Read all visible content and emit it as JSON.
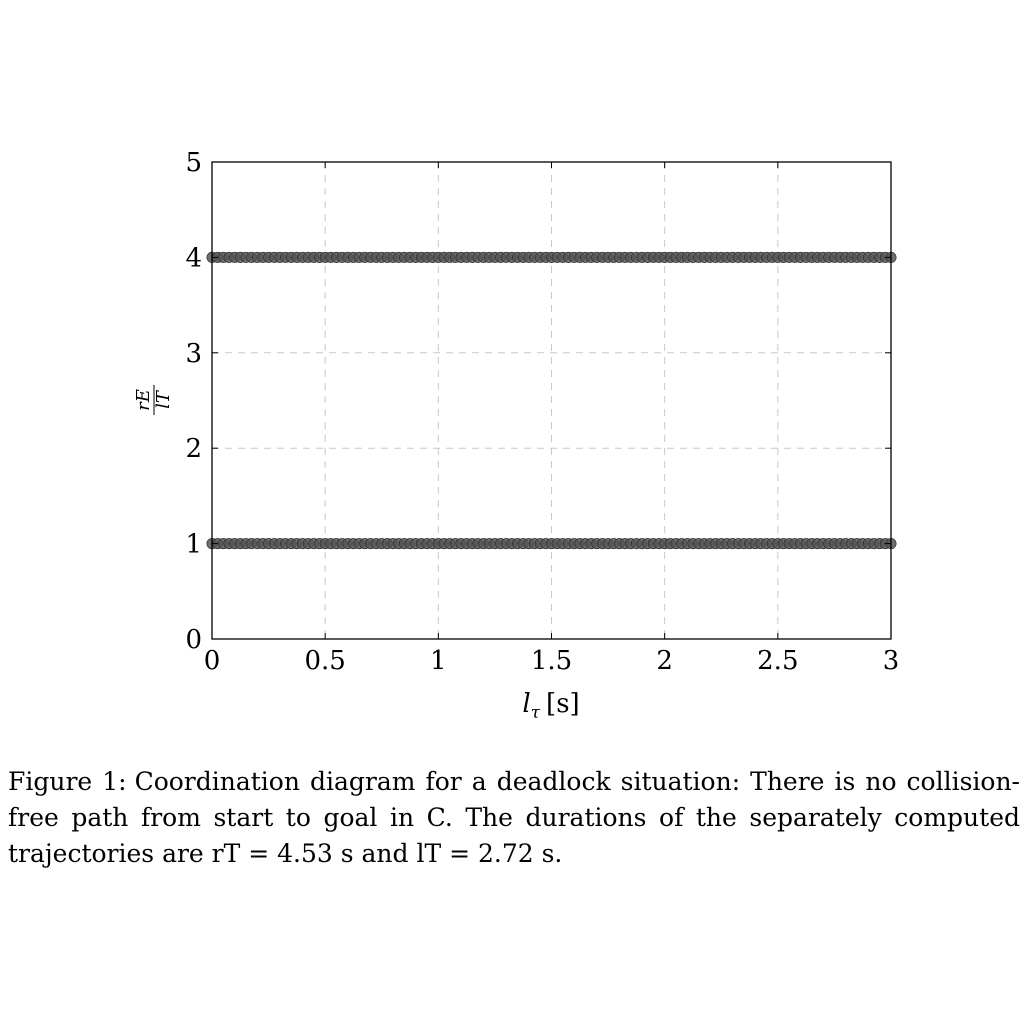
{
  "chart_data": {
    "type": "scatter",
    "xlabel": "lτ [s]",
    "ylabel": "rE/lT",
    "xlim": [
      0,
      3
    ],
    "ylim": [
      0,
      5
    ],
    "x_ticks": [
      "0",
      "0.5",
      "1",
      "1.5",
      "2",
      "2.5",
      "3"
    ],
    "y_ticks": [
      "0",
      "1",
      "2",
      "3",
      "4",
      "5"
    ],
    "grid": true,
    "marker_color": "#555555",
    "series": [
      {
        "x_start": 0,
        "x_end": 3,
        "x_step": 0.025,
        "y": 1
      },
      {
        "x_start": 0,
        "x_end": 3,
        "x_step": 0.025,
        "y": 4
      }
    ]
  },
  "caption": {
    "label": "Figure 1:",
    "text": "Coordination diagram for a deadlock situation: There is no collision-free path from start to goal in C. The durations of the separately computed trajectories are rT = 4.53 s and lT = 2.72 s."
  }
}
